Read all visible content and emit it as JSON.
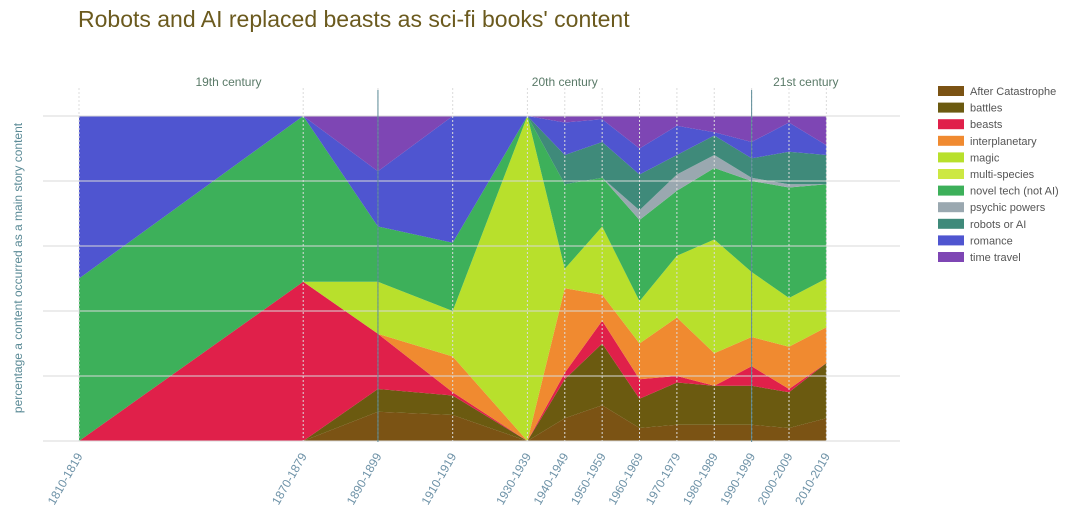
{
  "chart_data": {
    "type": "area",
    "stacked": true,
    "normalized": true,
    "title": "Robots and AI replaced beasts as sci-fi books' content",
    "ylabel": "percentage a content occurred as a main story content",
    "xlabel": "",
    "ylim": [
      0,
      100
    ],
    "x": [
      "1810-1819",
      "1870-1879",
      "1890-1899",
      "1910-1919",
      "1930-1939",
      "1940-1949",
      "1950-1959",
      "1960-1969",
      "1970-1979",
      "1980-1989",
      "1990-1999",
      "2000-2009",
      "2010-2019"
    ],
    "x_positions": [
      1810,
      1870,
      1890,
      1910,
      1930,
      1940,
      1950,
      1960,
      1970,
      1980,
      1990,
      2000,
      2010
    ],
    "centuries": [
      {
        "label": "19th century",
        "start": 1800
      },
      {
        "label": "20th century",
        "start": 1890
      },
      {
        "label": "21st century",
        "start": 1990
      }
    ],
    "grid": true,
    "legend_position": "right",
    "series": [
      {
        "name": "After Catastrophe",
        "color": "#7b5314",
        "values": [
          0,
          0,
          9,
          8,
          0,
          7,
          11,
          4,
          5,
          5,
          5,
          4,
          7
        ]
      },
      {
        "name": "battles",
        "color": "#6b5a10",
        "values": [
          0,
          0,
          7,
          6,
          0,
          12,
          19,
          9,
          13,
          12,
          12,
          11,
          17
        ]
      },
      {
        "name": "beasts",
        "color": "#e0204a",
        "values": [
          0,
          49,
          17,
          1,
          0,
          2,
          7,
          6,
          2,
          0,
          6,
          1,
          0
        ]
      },
      {
        "name": "interplanetary",
        "color": "#f08a30",
        "values": [
          0,
          0,
          0,
          11,
          0,
          26,
          8,
          11,
          18,
          10,
          9,
          13,
          11
        ]
      },
      {
        "name": "magic",
        "color": "#b8e02c",
        "values": [
          0,
          0,
          16,
          14,
          100,
          6,
          21,
          13,
          19,
          35,
          20,
          15,
          15
        ]
      },
      {
        "name": "multi-species",
        "color": "#cde842",
        "values": [
          0,
          0,
          0,
          0,
          0,
          0,
          0,
          0,
          0,
          0,
          0,
          0,
          0
        ]
      },
      {
        "name": "novel tech (not AI)",
        "color": "#3db05a",
        "values": [
          50,
          51,
          17,
          21,
          0,
          26,
          15,
          25,
          20,
          22,
          28,
          34,
          29
        ]
      },
      {
        "name": "psychic powers",
        "color": "#9aa8b0",
        "values": [
          0,
          0,
          0,
          0,
          0,
          0,
          0,
          3,
          5,
          4,
          1,
          1,
          0
        ]
      },
      {
        "name": "robots or AI",
        "color": "#3f8a7a",
        "values": [
          0,
          0,
          0,
          0,
          0,
          9,
          11,
          11,
          6,
          6,
          6,
          10,
          9
        ]
      },
      {
        "name": "romance",
        "color": "#4f55d0",
        "values": [
          50,
          0,
          17,
          39,
          0,
          10,
          7,
          8,
          9,
          1,
          5,
          9,
          3
        ]
      },
      {
        "name": "time travel",
        "color": "#7e46b4",
        "values": [
          0,
          0,
          17,
          0,
          0,
          2,
          1,
          10,
          3,
          5,
          8,
          2,
          9
        ]
      }
    ]
  }
}
